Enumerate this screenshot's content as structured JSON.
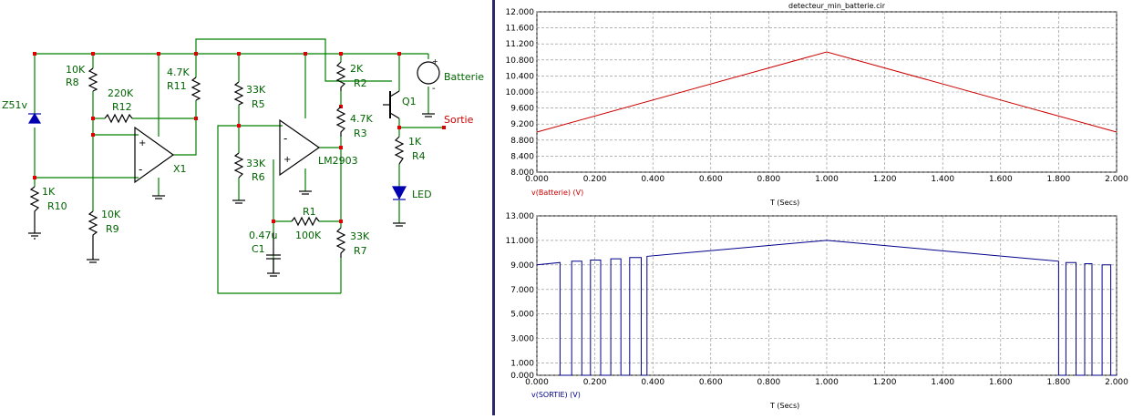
{
  "schematic": {
    "wire_color": "#008000",
    "node_color": "#e00000",
    "component_color": "#000000",
    "label_color": "#006400",
    "labels": {
      "z51v": "Z51v",
      "r8_val": "10K",
      "r8": "R8",
      "r12_val": "220K",
      "r12": "R12",
      "r11_val": "4.7K",
      "r11": "R11",
      "r10_val": "1K",
      "r10": "R10",
      "r9_val": "10K",
      "r9": "R9",
      "x1": "X1",
      "r5_val": "33K",
      "r5": "R5",
      "r6_val": "33K",
      "r6": "R6",
      "lm2903": "LM2903",
      "r2_val": "2K",
      "r2": "R2",
      "r3_val": "4.7K",
      "r3": "R3",
      "q1": "Q1",
      "batterie": "Batterie",
      "sortie": "Sortie",
      "r4_val": "1K",
      "r4": "R4",
      "led": "LED",
      "r1": "R1",
      "r1_val": "100K",
      "c1_val": "0.47u",
      "c1": "C1",
      "r7_val": "33K",
      "r7": "R7",
      "plus": "+",
      "minus": "-"
    }
  },
  "chart_data": [
    {
      "type": "line",
      "title": "detecteur_min_batterie.cir",
      "xlabel": "T (Secs)",
      "ylabel": "v(Batterie) (V)",
      "xlim": [
        0,
        2
      ],
      "ylim": [
        8,
        12
      ],
      "x_ticks": [
        "0.000",
        "0.200",
        "0.400",
        "0.600",
        "0.800",
        "1.000",
        "1.200",
        "1.400",
        "1.600",
        "1.800",
        "2.000"
      ],
      "y_ticks": [
        "12.000",
        "11.600",
        "11.200",
        "10.800",
        "10.400",
        "10.000",
        "9.600",
        "9.200",
        "8.800",
        "8.400",
        "8.000"
      ],
      "grid": true,
      "series": [
        {
          "name": "v(Batterie) (V)",
          "color": "#cc0000",
          "x": [
            0,
            1.0,
            2.0
          ],
          "y": [
            9.0,
            11.0,
            9.0
          ]
        }
      ]
    },
    {
      "type": "line",
      "title": "",
      "xlabel": "T (Secs)",
      "ylabel": "v(SORTIE) (V)",
      "xlim": [
        0,
        2
      ],
      "ylim": [
        0,
        13
      ],
      "x_ticks": [
        "0.000",
        "0.200",
        "0.400",
        "0.600",
        "0.800",
        "1.000",
        "1.200",
        "1.400",
        "1.600",
        "1.800",
        "2.000"
      ],
      "y_ticks": [
        "13.000",
        "11.000",
        "9.000",
        "7.000",
        "5.000",
        "3.000",
        "1.000",
        "0.000"
      ],
      "grid": true,
      "series": [
        {
          "name": "v(SORTIE) (V)",
          "color": "#00008b",
          "x": [
            0,
            0.08,
            0.08,
            0.12,
            0.12,
            0.155,
            0.155,
            0.185,
            0.185,
            0.22,
            0.22,
            0.255,
            0.255,
            0.29,
            0.29,
            0.32,
            0.32,
            0.36,
            0.36,
            0.38,
            0.38,
            1.0,
            1.8,
            1.8,
            1.825,
            1.825,
            1.86,
            1.86,
            1.89,
            1.89,
            1.915,
            1.915,
            1.95,
            1.95,
            1.98,
            1.98,
            2.0
          ],
          "y": [
            9.0,
            9.2,
            0,
            0,
            9.3,
            9.3,
            0,
            0,
            9.4,
            9.4,
            0,
            0,
            9.5,
            9.5,
            0,
            0,
            9.6,
            9.6,
            0,
            0,
            9.7,
            11.0,
            9.3,
            0,
            0,
            9.2,
            9.2,
            0,
            0,
            9.1,
            9.1,
            0,
            0,
            9.0,
            9.0,
            0,
            0
          ]
        }
      ]
    }
  ]
}
